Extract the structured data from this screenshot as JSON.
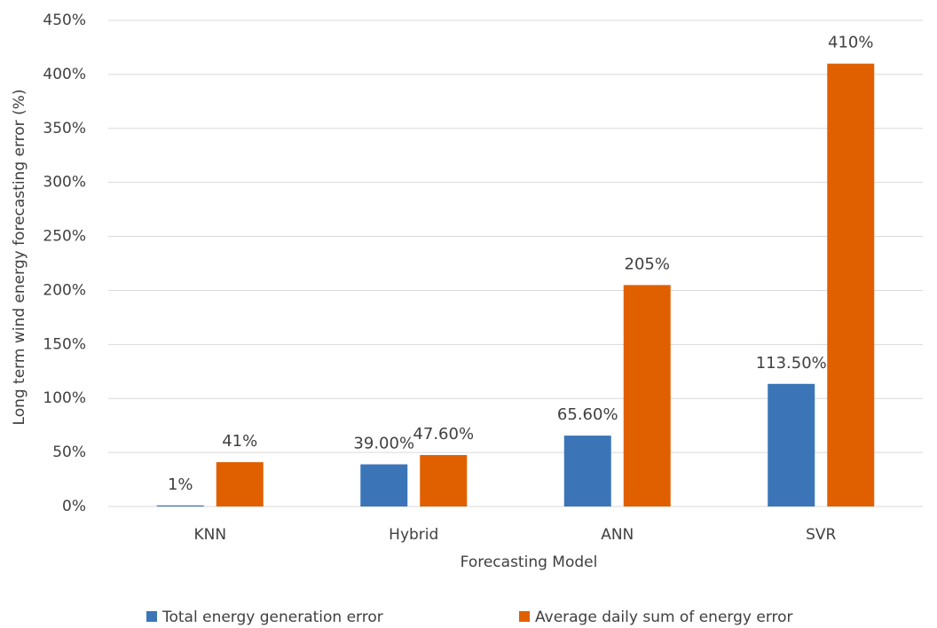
{
  "chart_data": {
    "type": "bar",
    "x_label": "Forecasting Model",
    "y_label": "Long term wind energy forecasting error (%)",
    "categories": [
      "KNN",
      "Hybrid",
      "ANN",
      "SVR"
    ],
    "series": [
      {
        "name": "Total energy generation error",
        "color": "#3b75b8",
        "values": [
          1,
          39,
          65.6,
          113.5
        ],
        "value_labels": [
          "1%",
          "39.00%",
          "65.60%",
          "113.50%"
        ]
      },
      {
        "name": "Average daily sum of energy error",
        "color": "#e06000",
        "values": [
          41,
          47.6,
          205,
          410
        ],
        "value_labels": [
          "41%",
          "47.60%",
          "205%",
          "410%"
        ]
      }
    ],
    "ylim": [
      0,
      450
    ],
    "yticks": [
      {
        "value": 0,
        "label": "0%"
      },
      {
        "value": 50,
        "label": "50%"
      },
      {
        "value": 100,
        "label": "100%"
      },
      {
        "value": 150,
        "label": "150%"
      },
      {
        "value": 200,
        "label": "200%"
      },
      {
        "value": 250,
        "label": "250%"
      },
      {
        "value": 300,
        "label": "300%"
      },
      {
        "value": 350,
        "label": "350%"
      },
      {
        "value": 400,
        "label": "400%"
      },
      {
        "value": 450,
        "label": "450%"
      }
    ],
    "grid": true,
    "legend": "bottom"
  }
}
